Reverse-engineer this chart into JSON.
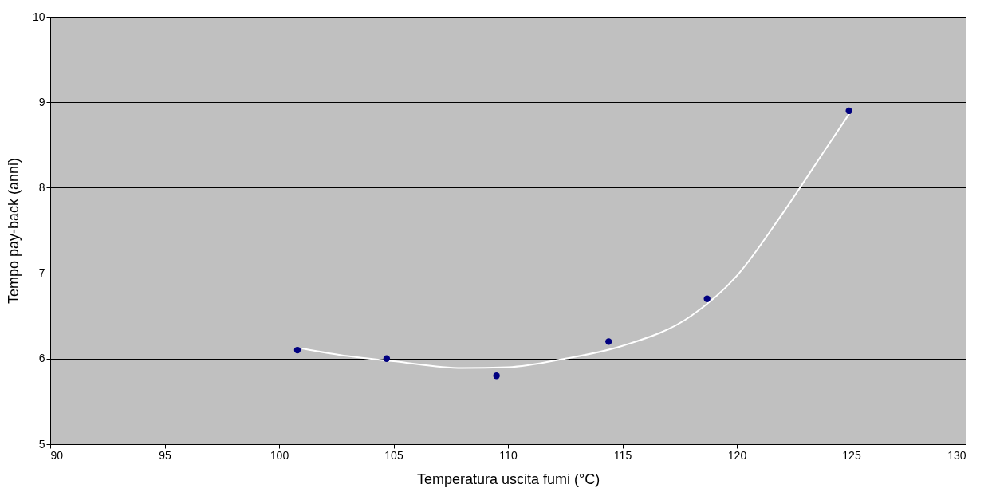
{
  "chart_data": {
    "type": "scatter",
    "xlabel": "Temperatura uscita fumi (°C)",
    "ylabel": "Tempo pay-back (anni)",
    "xlim": [
      90,
      130
    ],
    "xticks": [
      90,
      95,
      100,
      105,
      110,
      115,
      120,
      125,
      130
    ],
    "ylim": [
      5,
      10
    ],
    "yticks": [
      5,
      6,
      7,
      8,
      9,
      10
    ],
    "grid": "y",
    "series": [
      {
        "type": "line",
        "color": "#ffffff",
        "x": [
          101,
          103,
          105,
          108,
          110,
          112.5,
          115,
          118,
          120,
          122,
          124,
          125
        ],
        "values": [
          6.12,
          6.03,
          5.97,
          5.89,
          5.9,
          6.0,
          6.15,
          6.5,
          6.97,
          7.7,
          8.5,
          8.9
        ]
      },
      {
        "marker": "circle",
        "color": "#000080",
        "x": [
          100.8,
          104.7,
          109.5,
          114.4,
          118.7,
          124.9
        ],
        "values": [
          6.1,
          6.0,
          5.8,
          6.2,
          6.7,
          8.9
        ]
      }
    ]
  }
}
